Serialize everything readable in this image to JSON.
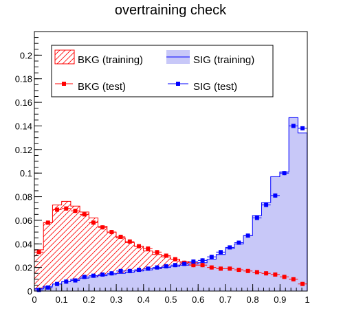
{
  "chart_data": {
    "type": "histogram",
    "title": "overtraining check",
    "xlabel": "",
    "ylabel": "",
    "xlim": [
      0,
      1
    ],
    "ylim": [
      0,
      0.22
    ],
    "grid": false,
    "x_ticks": [
      "0",
      "0.1",
      "0.2",
      "0.3",
      "0.4",
      "0.5",
      "0.6",
      "0.7",
      "0.8",
      "0.9",
      "1"
    ],
    "y_ticks": [
      "0",
      "0.02",
      "0.04",
      "0.06",
      "0.08",
      "0.1",
      "0.12",
      "0.14",
      "0.16",
      "0.18",
      "0.2"
    ],
    "bin_edges_start": 0,
    "bin_width": 0.0333,
    "legend": {
      "position": "top-left",
      "entries": [
        "BKG (training)",
        "SIG (training)",
        "BKG (test)",
        "SIG (test)"
      ]
    },
    "series": [
      {
        "name": "BKG (training)",
        "style": "hatched-histogram",
        "color": "#ff0000",
        "values": [
          0.035,
          0.058,
          0.073,
          0.076,
          0.072,
          0.067,
          0.062,
          0.055,
          0.05,
          0.045,
          0.041,
          0.038,
          0.034,
          0.031,
          0.029,
          0.027,
          0.025,
          0.024,
          0.023,
          0.022,
          0.021,
          0.02,
          0.019,
          0.018,
          0.018,
          0.017,
          0.016,
          0.014,
          0.012,
          0.01
        ]
      },
      {
        "name": "SIG (training)",
        "style": "filled-histogram",
        "color": "#0000ff",
        "fill": "#c8c8f8",
        "values": [
          0.002,
          0.004,
          0.006,
          0.008,
          0.01,
          0.011,
          0.012,
          0.013,
          0.014,
          0.015,
          0.016,
          0.017,
          0.018,
          0.019,
          0.02,
          0.021,
          0.022,
          0.023,
          0.024,
          0.027,
          0.031,
          0.036,
          0.04,
          0.047,
          0.064,
          0.075,
          0.097,
          0.101,
          0.147,
          0.134
        ]
      },
      {
        "name": "BKG (test)",
        "style": "markers-with-errors",
        "color": "#ff0000",
        "values": [
          0.033,
          0.058,
          0.069,
          0.07,
          0.068,
          0.065,
          0.058,
          0.054,
          0.05,
          0.046,
          0.042,
          0.038,
          0.036,
          0.033,
          0.03,
          0.027,
          0.024,
          0.022,
          0.022,
          0.02,
          0.019,
          0.019,
          0.018,
          0.017,
          0.016,
          0.015,
          0.014,
          0.012,
          0.01,
          0.006
        ]
      },
      {
        "name": "SIG (test)",
        "style": "markers-with-errors",
        "color": "#0000ff",
        "values": [
          0.001,
          0.003,
          0.006,
          0.008,
          0.009,
          0.012,
          0.013,
          0.014,
          0.015,
          0.017,
          0.017,
          0.018,
          0.019,
          0.02,
          0.021,
          0.022,
          0.023,
          0.025,
          0.026,
          0.029,
          0.033,
          0.037,
          0.041,
          0.047,
          0.062,
          0.073,
          0.081,
          0.1,
          0.14,
          0.138
        ]
      }
    ]
  }
}
